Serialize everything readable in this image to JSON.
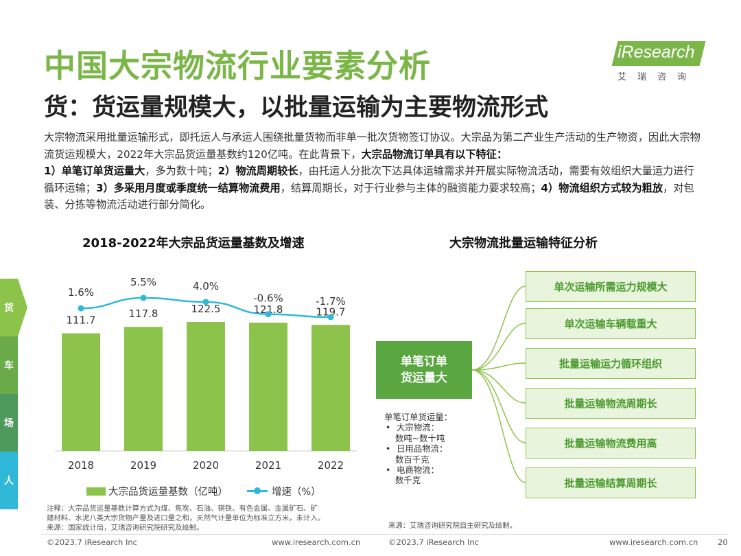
{
  "header": {
    "title": "中国大宗物流行业要素分析",
    "subtitle": "货：货运量规模大，以批量运输为主要物流形式"
  },
  "logo": {
    "text": "iResearch",
    "sub": "艾瑞咨询"
  },
  "intro": {
    "p1": "大宗物流采用批量运输形式，即托运人与承运人围绕批量货物而非单一批次货物签订协议。大宗品为第二产业生产活动的生产物资，因此大宗物流货运规模大，2022年大宗品货运量基数约120亿吨。在此背景下，",
    "b1": "大宗品物流订单具有以下特征：",
    "b2": "1）单笔订单货运量大",
    "p2": "，多为数十吨；",
    "b3": "2）物流周期较长",
    "p3": "，由托运人分批次下达具体运输需求并开展实际物流活动，需要有效组织大量运力进行循环运输；",
    "b4": "3）多采用月度或季度统一结算物流费用",
    "p4": "，结算周期长，对于行业参与主体的融资能力要求较高；",
    "b5": "4）物流组织方式较为粗放",
    "p5": "，对包装、分拣等物流活动进行部分简化。"
  },
  "side_tabs": [
    "货",
    "车",
    "场",
    "人"
  ],
  "colors": {
    "accent": "#7ab648",
    "bar": "#8cc34a",
    "line": "#2fb8d8"
  },
  "chart_data": {
    "type": "bar",
    "title": "2018-2022年大宗品货运量基数及增速",
    "categories": [
      "2018",
      "2019",
      "2020",
      "2021",
      "2022"
    ],
    "series": [
      {
        "name": "大宗品货运量基数（亿吨）",
        "type": "bar",
        "values": [
          111.7,
          117.8,
          122.5,
          121.8,
          119.7
        ],
        "labels": [
          "111.7",
          "117.8",
          "122.5",
          "121.8",
          "119.7"
        ]
      },
      {
        "name": "增速（%）",
        "type": "line",
        "values": [
          1.6,
          5.5,
          4.0,
          -0.6,
          -1.7
        ],
        "labels": [
          "1.6%",
          "5.5%",
          "4.0%",
          "-0.6%",
          "-1.7%"
        ]
      }
    ],
    "legend": "bottom"
  },
  "chart_note": {
    "line1": "注释：大宗品货运量基数计算方式为煤、焦炭、石油、钢铁、有色金属、金属矿石、矿",
    "line2": "建材料、水泥八类大宗货物产量及进口量之和，天然气计量单位为标准立方米，未计入。",
    "line3": "来源：国家统计局，艾瑞咨询研究院研究及绘制。"
  },
  "diagram": {
    "title": "大宗物流批量运输特征分析",
    "center_line1": "单笔订单",
    "center_line2": "货运量大",
    "features": [
      "单次运输所需运力规模大",
      "单次运输车辆载重大",
      "批量运输运力循环组织",
      "批量运输物流周期长",
      "批量运输物流费用高",
      "批量运输结算周期长"
    ],
    "detail_title": "单笔订单货运量：",
    "details": [
      {
        "name": "大宗物流：",
        "value": "数吨~数十吨"
      },
      {
        "name": "日用品物流：",
        "value": "数百千克"
      },
      {
        "name": "电商物流：",
        "value": "数千克"
      }
    ],
    "source": "来源：艾瑞咨询研究院自主研究及绘制。"
  },
  "footer": {
    "left_copyright": "©2023.7 iResearch Inc",
    "left_url": "www.iresearch.com.cn",
    "right_copyright": "©2023.7 iResearch Inc",
    "right_url": "www.iresearch.com.cn",
    "page": "20"
  }
}
